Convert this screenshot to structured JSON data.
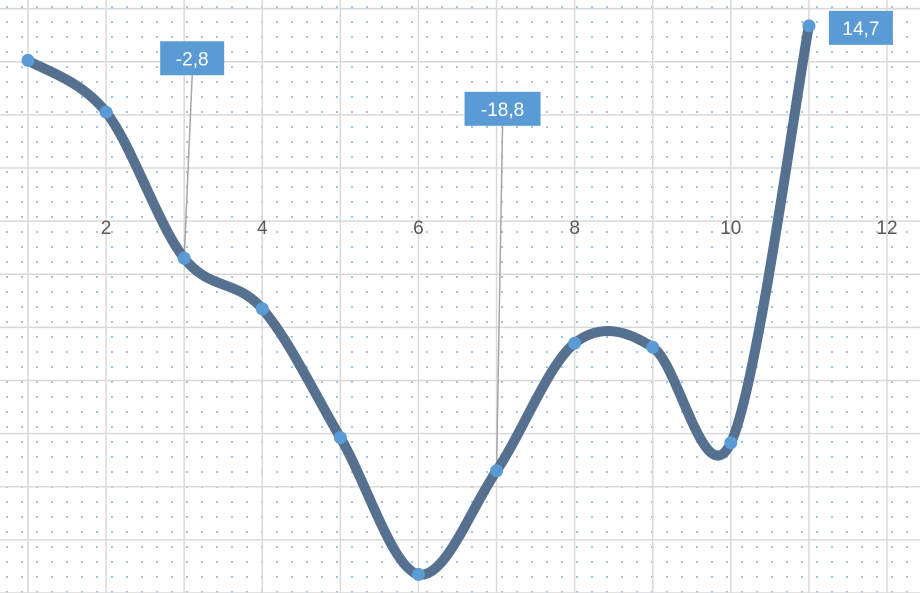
{
  "chart_data": {
    "type": "line",
    "x": [
      1,
      2,
      3,
      4,
      5,
      6,
      7,
      8,
      9,
      10,
      11
    ],
    "series": [
      {
        "values": [
          12.1,
          8.2,
          -2.8,
          -6.6,
          -16.3,
          -26.6,
          -18.8,
          -9.2,
          -9.5,
          -16.7,
          14.7
        ]
      }
    ],
    "xlim": [
      1,
      12
    ],
    "ylim": [
      -28,
      18
    ],
    "x_ticks": [
      {
        "value": 2,
        "label": "2"
      },
      {
        "value": 4,
        "label": "4"
      },
      {
        "value": 6,
        "label": "6"
      },
      {
        "value": 8,
        "label": "8"
      },
      {
        "value": 10,
        "label": "10"
      },
      {
        "value": 12,
        "label": "12"
      }
    ],
    "data_labels": [
      {
        "x": 3,
        "text": "-2,8"
      },
      {
        "x": 7,
        "text": "-18,8"
      },
      {
        "x": 11,
        "text": "14,7"
      }
    ],
    "smooth": true,
    "grid": true,
    "legend": "none",
    "colors": {
      "line": "#56708f",
      "marker": "#5b9bd5",
      "label_bg": "#5b9bd5",
      "leader": "#a6a6a6",
      "grid": "#d9d9d9",
      "dots": "#9dc3e6"
    }
  }
}
